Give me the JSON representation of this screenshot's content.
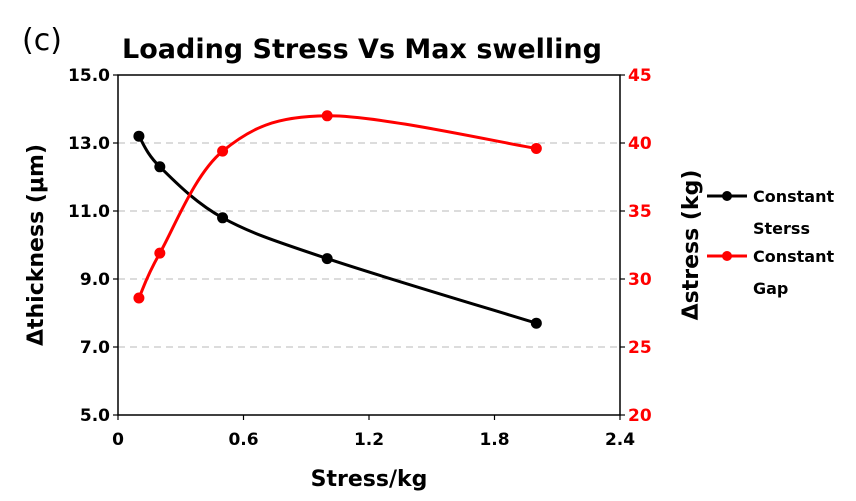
{
  "panel_label": "(c)",
  "chart_data": {
    "type": "line",
    "title": "Loading Stress Vs Max swelling",
    "xlabel": "Stress/kg",
    "ylabel_left": "Δthickness (μm)",
    "ylabel_right": "Δstress (kg)",
    "xlim": [
      0,
      2.4
    ],
    "xticks": [
      "0",
      "0.6",
      "1.2",
      "1.8",
      "2.4"
    ],
    "ylim_left": [
      5.0,
      15.0
    ],
    "yticks_left": [
      "5.0",
      "7.0",
      "9.0",
      "11.0",
      "13.0",
      "15.0"
    ],
    "ylim_right": [
      20,
      45
    ],
    "yticks_right": [
      "20",
      "25",
      "30",
      "35",
      "40",
      "45"
    ],
    "grid": "horizontal dashed",
    "legend_position": "right",
    "series": [
      {
        "name_line1": "Constant",
        "name_line2": "Sterss",
        "axis": "left",
        "color": "#000000",
        "x": [
          0.1,
          0.2,
          0.5,
          1.0,
          2.0
        ],
        "y": [
          13.2,
          12.3,
          10.8,
          9.6,
          7.7
        ]
      },
      {
        "name_line1": "Constant",
        "name_line2": "Gap",
        "axis": "right",
        "color": "#ff0000",
        "x": [
          0.1,
          0.2,
          0.5,
          1.0,
          2.0
        ],
        "y": [
          28.6,
          31.9,
          39.4,
          42.0,
          39.6
        ]
      }
    ]
  }
}
